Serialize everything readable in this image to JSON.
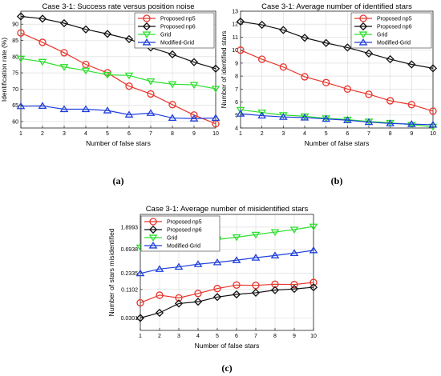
{
  "chart_data": [
    {
      "type": "line",
      "title": "Case 3-1: Success rate versus position noise",
      "xlabel": "Number of false stars",
      "ylabel": "Identification rate (%)",
      "caption": "(a)",
      "x": [
        1,
        2,
        3,
        4,
        5,
        6,
        7,
        8,
        9,
        10
      ],
      "xlim": [
        1,
        10
      ],
      "ylim": [
        58,
        94
      ],
      "yticks": [
        60,
        65,
        70,
        75,
        80,
        85,
        90
      ],
      "grid": true,
      "legend": "top-right",
      "series": [
        {
          "name": "Proposed np5",
          "color": "#e8342a",
          "marker": "circle",
          "values": [
            87.3,
            84.4,
            81.2,
            77.6,
            75.0,
            70.9,
            68.5,
            65.2,
            62.0,
            59.3
          ]
        },
        {
          "name": "Proposed np6",
          "color": "#111111",
          "marker": "diamond",
          "values": [
            92.4,
            91.7,
            90.3,
            88.4,
            87.0,
            85.4,
            82.8,
            80.7,
            78.3,
            76.3
          ]
        },
        {
          "name": "Grid",
          "color": "#2ee02e",
          "marker": "triangle-down",
          "values": [
            79.4,
            78.4,
            76.8,
            75.7,
            74.4,
            74.2,
            72.4,
            71.5,
            71.3,
            70.1
          ]
        },
        {
          "name": "Modified-Grid",
          "color": "#1f3fdc",
          "marker": "triangle-up",
          "values": [
            64.7,
            64.8,
            63.8,
            63.8,
            63.4,
            62.1,
            62.6,
            61.1,
            60.9,
            61.1
          ]
        }
      ]
    },
    {
      "type": "line",
      "title": "Case 3-1: Average number of identified stars",
      "xlabel": "Number of false stars",
      "ylabel": "Number of identified stars",
      "caption": "(b)",
      "x": [
        1,
        2,
        3,
        4,
        5,
        6,
        7,
        8,
        9,
        10
      ],
      "xlim": [
        1,
        10
      ],
      "ylim": [
        4,
        13
      ],
      "yticks": [
        4,
        5,
        6,
        7,
        8,
        9,
        10,
        11,
        12,
        13
      ],
      "grid": true,
      "legend": "top-right",
      "series": [
        {
          "name": "Proposed np5",
          "color": "#e8342a",
          "marker": "circle",
          "values": [
            10.0,
            9.3,
            8.7,
            7.95,
            7.5,
            7.0,
            6.6,
            6.1,
            5.8,
            5.3
          ]
        },
        {
          "name": "Proposed np6",
          "color": "#111111",
          "marker": "diamond",
          "values": [
            12.2,
            11.95,
            11.55,
            10.95,
            10.55,
            10.2,
            9.75,
            9.3,
            8.9,
            8.6
          ]
        },
        {
          "name": "Grid",
          "color": "#2ee02e",
          "marker": "triangle-down",
          "values": [
            5.4,
            5.2,
            5.0,
            4.9,
            4.75,
            4.65,
            4.5,
            4.4,
            4.25,
            4.1
          ]
        },
        {
          "name": "Modified-Grid",
          "color": "#1f3fdc",
          "marker": "triangle-up",
          "values": [
            5.1,
            4.95,
            4.85,
            4.8,
            4.7,
            4.6,
            4.45,
            4.35,
            4.3,
            4.25
          ]
        }
      ]
    },
    {
      "type": "line",
      "title": "Case 3-1: Average number of misidentified stars",
      "xlabel": "Number of false stars",
      "ylabel": "Number of stars misidentified",
      "caption": "(c)",
      "x": [
        1,
        2,
        3,
        4,
        5,
        6,
        7,
        8,
        9,
        10
      ],
      "xlim": [
        1,
        10
      ],
      "yscale": "log",
      "ylim": [
        0.017,
        3.4
      ],
      "yticks": [
        0.0301,
        0.1102,
        0.2335,
        0.6938,
        1.8993
      ],
      "yticklabels": [
        "0.0301",
        "0.1102",
        "0.2335",
        "0.6938",
        "1.8993"
      ],
      "grid": true,
      "legend": "top-left",
      "series": [
        {
          "name": "Proposed np5",
          "color": "#e8342a",
          "marker": "circle",
          "values": [
            0.06,
            0.085,
            0.075,
            0.092,
            0.115,
            0.135,
            0.133,
            0.14,
            0.138,
            0.152
          ]
        },
        {
          "name": "Proposed np6",
          "color": "#111111",
          "marker": "diamond",
          "values": [
            0.03,
            0.038,
            0.058,
            0.063,
            0.078,
            0.088,
            0.095,
            0.107,
            0.113,
            0.122
          ]
        },
        {
          "name": "Grid",
          "color": "#2ee02e",
          "marker": "triangle-down",
          "values": [
            0.75,
            0.82,
            0.9,
            0.98,
            1.08,
            1.2,
            1.35,
            1.52,
            1.7,
            1.95
          ]
        },
        {
          "name": "Modified-Grid",
          "color": "#1f3fdc",
          "marker": "triangle-up",
          "values": [
            0.23,
            0.28,
            0.31,
            0.35,
            0.38,
            0.42,
            0.47,
            0.52,
            0.58,
            0.66
          ]
        }
      ]
    }
  ]
}
